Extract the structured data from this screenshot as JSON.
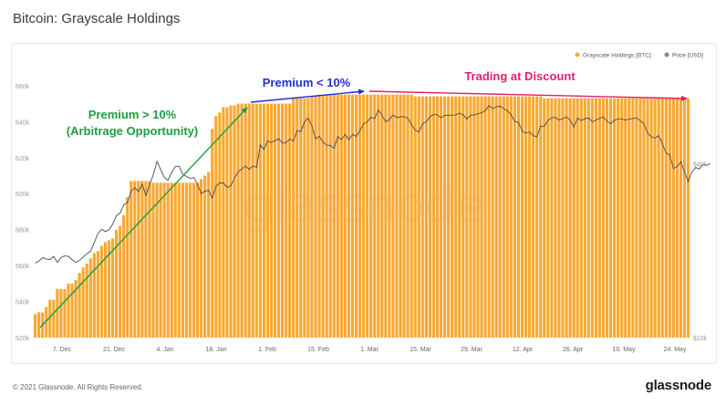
{
  "page": {
    "title": "Bitcoin: Grayscale Holdings",
    "footer_copyright": "© 2021 Glassnode. All Rights Reserved.",
    "footer_brand": "glassnode",
    "watermark": "glassnode"
  },
  "colors": {
    "bar": "#F7A833",
    "bar_stroke": "#E8981F",
    "price_line": "#4a4a4a",
    "green": "#1E9E3E",
    "blue": "#1F2FD6",
    "magenta": "#E0206E",
    "watermark": "#d8d8d8"
  },
  "chart_data": {
    "type": "bar",
    "title": "Bitcoin: Grayscale Holdings",
    "series": [
      {
        "name": "Grayscale Holdings [BTC]",
        "values": [
          533000,
          534000,
          534000,
          537000,
          541000,
          541000,
          547000,
          547000,
          547000,
          550000,
          550000,
          552000,
          556000,
          559000,
          561000,
          564000,
          567000,
          568000,
          571000,
          573000,
          574000,
          575000,
          580000,
          582000,
          588000,
          598000,
          607000,
          607000,
          607000,
          607000,
          607000,
          607000,
          606000,
          606000,
          606000,
          606000,
          606000,
          606000,
          606000,
          606000,
          606000,
          606000,
          606000,
          606000,
          606000,
          608000,
          610000,
          612000,
          636000,
          643000,
          645000,
          648000,
          648000,
          649000,
          649000,
          650000,
          650000,
          650000,
          650000,
          650000,
          650000,
          650000,
          650000,
          650000,
          650000,
          650000,
          650000,
          650000,
          650000,
          650000,
          653000,
          653000,
          653000,
          653000,
          653000,
          654000,
          654000,
          655000,
          655000,
          655000,
          655000,
          655000,
          655000,
          655000,
          655000,
          655000,
          655000,
          655000,
          655000,
          655000,
          655000,
          655000,
          655000,
          655000,
          655000,
          655000,
          655000,
          655000,
          655000,
          655000,
          655000,
          655000,
          655000,
          654000,
          654000,
          654000,
          654000,
          654000,
          654000,
          654000,
          654000,
          654000,
          654000,
          654000,
          654000,
          654000,
          654000,
          654000,
          654000,
          654000,
          654000,
          654000,
          654000,
          654000,
          654000,
          654000,
          654000,
          654000,
          654000,
          654000,
          654000,
          654000,
          654000,
          654000,
          654000,
          654000,
          654000,
          654000,
          653000,
          653000,
          653000,
          653000,
          653000,
          653000,
          653000,
          653000,
          653000,
          653000,
          653000,
          653000,
          653000,
          653000,
          653000,
          653000,
          653000,
          653000,
          653000,
          653000,
          653000,
          653000,
          653000,
          653000,
          653000,
          653000,
          653000,
          653000,
          653000,
          653000,
          653000,
          653000,
          653000,
          653000,
          653000,
          653000,
          653000,
          653000,
          653000,
          653000
        ]
      },
      {
        "name": "Price [USD]",
        "values": [
          18100,
          18400,
          18900,
          18700,
          18600,
          19100,
          18200,
          18900,
          19200,
          19100,
          18600,
          18200,
          18500,
          19000,
          19500,
          19900,
          21300,
          22900,
          23700,
          23300,
          23600,
          24700,
          26400,
          27000,
          28800,
          29300,
          32100,
          33000,
          32000,
          34000,
          31000,
          33900,
          36600,
          40700,
          38200,
          35800,
          35000,
          37300,
          39100,
          39200,
          36700,
          36100,
          35500,
          35800,
          33900,
          31500,
          32100,
          32300,
          30400,
          33400,
          34300,
          34300,
          33100,
          33500,
          35500,
          37500,
          38300,
          39300,
          38200,
          39300,
          38800,
          46400,
          44800,
          47900,
          47300,
          48000,
          48800,
          47100,
          47300,
          48600,
          47900,
          52100,
          51600,
          55900,
          57500,
          54000,
          48800,
          49700,
          47500,
          46300,
          46200,
          45200,
          49600,
          48400,
          50500,
          48400,
          50500,
          49700,
          51900,
          54900,
          55800,
          57800,
          57300,
          61200,
          59000,
          55700,
          56900,
          58900,
          57700,
          58100,
          58200,
          57400,
          54500,
          52300,
          51400,
          55000,
          55800,
          58000,
          59300,
          59000,
          57600,
          58800,
          58700,
          58900,
          59000,
          59800,
          59000,
          57000,
          58800,
          59000,
          59500,
          60000,
          61000,
          63500,
          62000,
          63000,
          63200,
          62000,
          61000,
          59000,
          56000,
          55500,
          51700,
          51000,
          51500,
          50000,
          49500,
          54000,
          53800,
          56500,
          57600,
          57800,
          56600,
          57200,
          58000,
          56500,
          53500,
          57500,
          56400,
          57200,
          57500,
          55800,
          56600,
          57400,
          58100,
          56000,
          55000,
          56500,
          57000,
          57200,
          56500,
          57100,
          57300,
          57600,
          56300,
          55000,
          51000,
          49500,
          49000,
          50000,
          46700,
          43500,
          42900,
          38500,
          39000,
          40600,
          37300,
          34700,
          37400,
          38800,
          38300,
          39800,
          39500,
          40000
        ]
      }
    ],
    "x_tick_labels": [
      "7. Dec",
      "21. Dec",
      "4. Jan",
      "18. Jan",
      "1. Feb",
      "15. Feb",
      "1. Mar",
      "15. Mar",
      "29. Mar",
      "12. Apr",
      "26. Apr",
      "10. May",
      "24. May"
    ],
    "y_left": {
      "ticks": [
        520000,
        540000,
        560000,
        580000,
        600000,
        620000,
        640000,
        660000
      ],
      "tick_labels": [
        "520k",
        "540k",
        "560k",
        "580k",
        "600k",
        "620k",
        "640k",
        "660k"
      ],
      "range": [
        520000,
        665000
      ],
      "scale": "linear"
    },
    "y_right": {
      "ticks": [
        10000,
        40000
      ],
      "tick_labels": [
        "$10k",
        "$40k"
      ],
      "range": [
        10000,
        80000
      ],
      "scale": "log"
    },
    "legend": [
      "Grayscale Holdings [BTC]",
      "Price [USD]"
    ],
    "legend_position": "top-right",
    "annotations": [
      {
        "text": "Premium > 10%",
        "subtext": "(Arbitrage Opportunity)",
        "color": "green"
      },
      {
        "text": "Premium < 10%",
        "color": "blue"
      },
      {
        "text": "Trading at Discount",
        "color": "magenta"
      }
    ]
  }
}
